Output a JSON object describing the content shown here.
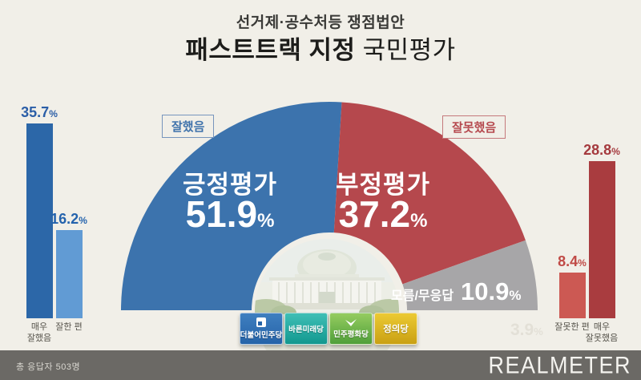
{
  "strings": {
    "pct": "%"
  },
  "title": {
    "line1": "선거제·공수처등 쟁점법안",
    "line2_strong": "패스트트랙 지정",
    "line2_normal": "국민평가"
  },
  "chart_data": {
    "type": "pie",
    "variant": "semicircle-donut",
    "title": "패스트트랙 지정 국민평가",
    "subtitle": "선거제·공수처등 쟁점법안",
    "unit": "%",
    "legend_position": "none",
    "segments": [
      {
        "label": "긍정평가",
        "value": 51.9,
        "tag": "잘했음",
        "color": "#3c73ad"
      },
      {
        "label": "부정평가",
        "value": 37.2,
        "tag": "잘못했음",
        "color": "#b5484d"
      },
      {
        "label": "모름/무응답",
        "value": 10.9,
        "tag": "",
        "color": "#a7a6a8"
      }
    ],
    "detail_bars": {
      "type": "bar",
      "categories": [
        "매우\n잘했음",
        "잘한 편",
        "잘못한 편",
        "매우\n잘못했음"
      ],
      "values": [
        35.7,
        16.2,
        8.4,
        28.8
      ],
      "colors": [
        "#2c67a8",
        "#619bd4",
        "#cc5953",
        "#a93c3f"
      ],
      "value_colors": [
        "#2b5ea7",
        "#2463ad",
        "#c04a46",
        "#a53a3e"
      ],
      "ylim": [
        0,
        40
      ]
    },
    "ghost_value": 3.9,
    "footnote": "총 응답자 503명"
  },
  "parties": [
    {
      "name": "더불어민주당",
      "color_top": "#3f7fc0",
      "color_bottom": "#2563a8"
    },
    {
      "name": "바른미래당",
      "color_top": "#3fbfb6",
      "color_bottom": "#12988f"
    },
    {
      "name": "민주평화당",
      "color_top": "#95cc60",
      "color_bottom": "#4f9f3a"
    },
    {
      "name": "정의당",
      "color_top": "#ecca33",
      "color_bottom": "#c9a013"
    }
  ],
  "footer": {
    "respondents": "총 응답자 503명",
    "brand": "REALMETER"
  }
}
